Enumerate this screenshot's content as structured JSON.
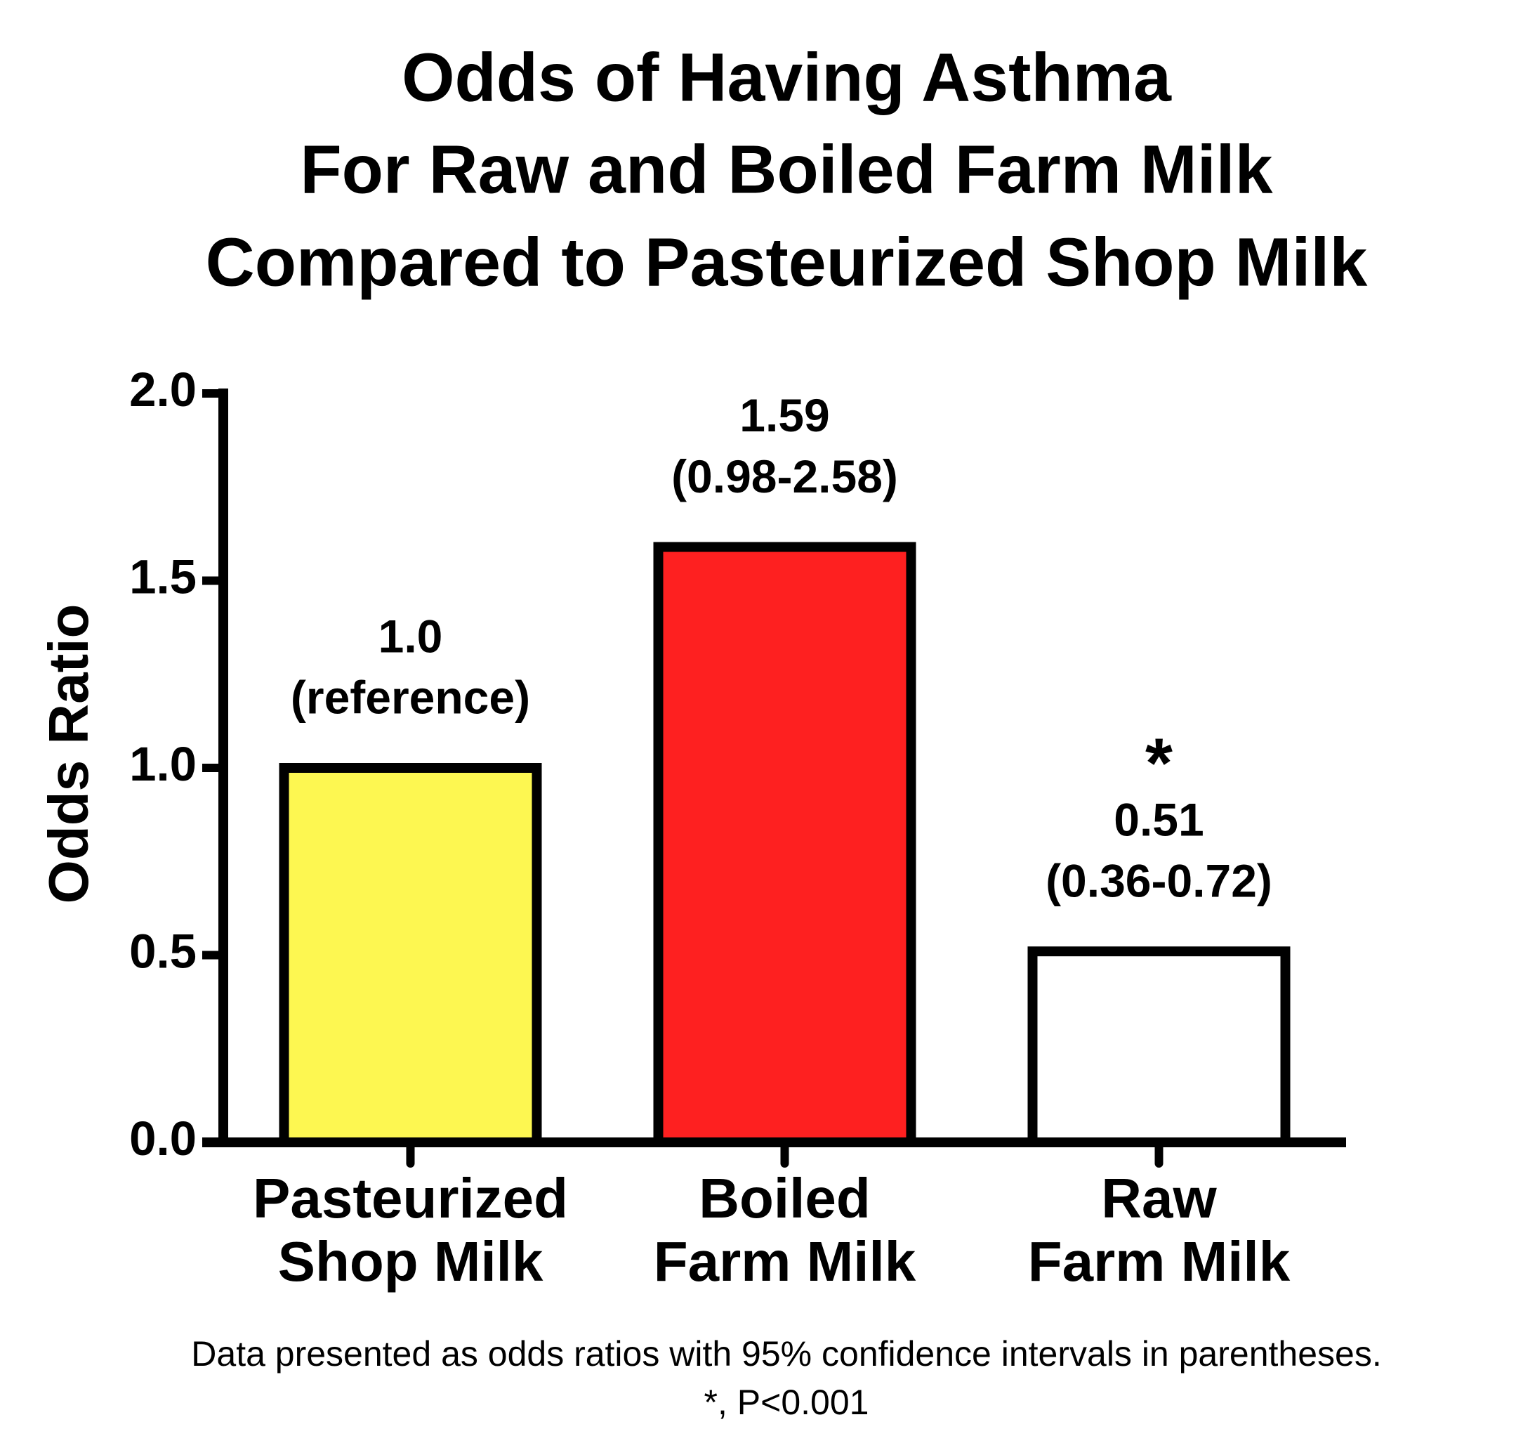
{
  "chart_data": {
    "type": "bar",
    "title": [
      "Odds of Having Asthma",
      "For Raw and Boiled Farm Milk",
      "Compared to Pasteurized Shop Milk"
    ],
    "y_label": "Odds Ratio",
    "categories": [
      [
        "Pasteurized",
        "Shop Milk"
      ],
      [
        "Boiled",
        "Farm Milk"
      ],
      [
        "Raw",
        "Farm Milk"
      ]
    ],
    "values": [
      1.0,
      1.59,
      0.51
    ],
    "value_labels": [
      "1.0",
      "1.59",
      "0.51"
    ],
    "ci_labels": [
      "(reference)",
      "(0.98-2.58)",
      "(0.36-0.72)"
    ],
    "significance": [
      null,
      null,
      "*"
    ],
    "colors": [
      "#fdf751",
      "#fe2020",
      "#ffffff"
    ],
    "ylim": [
      0,
      2
    ],
    "yticks": [
      {
        "value": 0,
        "label": "0.0"
      },
      0.5,
      {
        "value": 1,
        "label": "1.0"
      },
      1.5,
      {
        "value": 2,
        "label": "2.0"
      }
    ],
    "footnote": [
      "Data presented as odds ratios with 95% confidence intervals in parentheses.",
      "*, P<0.001"
    ]
  }
}
